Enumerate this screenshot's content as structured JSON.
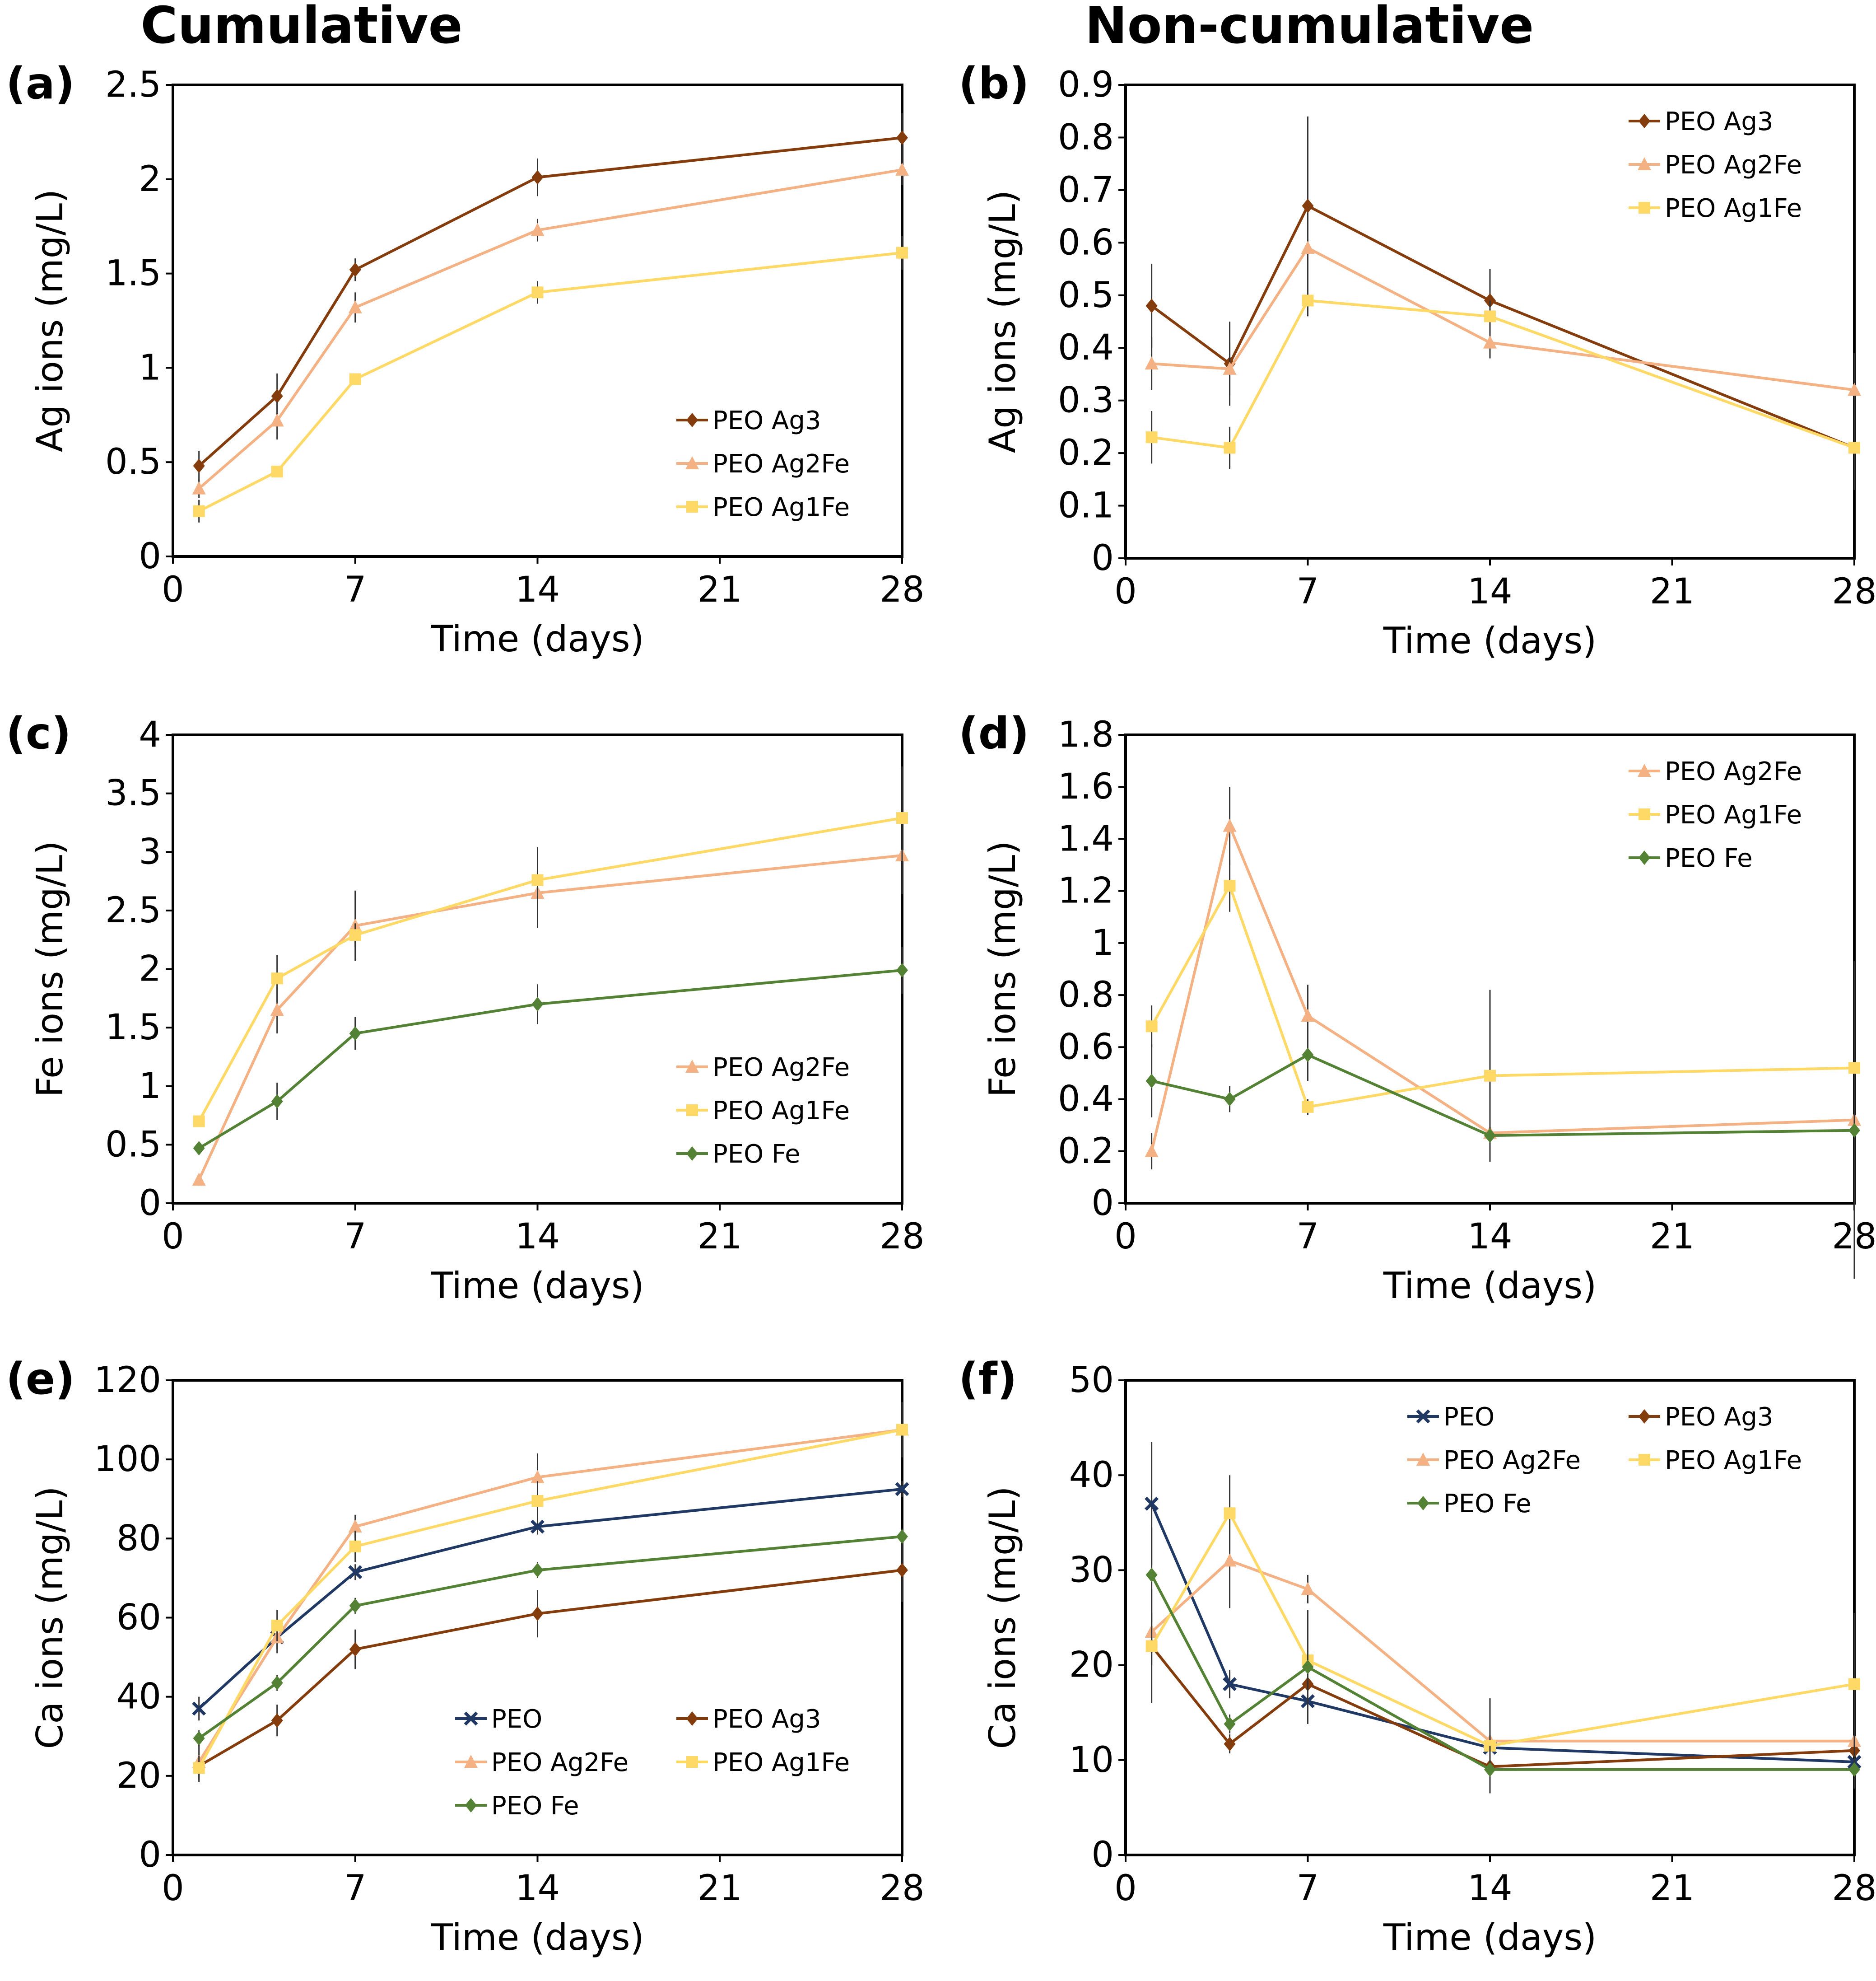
{
  "headers": {
    "cumulative": "Cumulative",
    "noncumulative": "Non-cumulative"
  },
  "series_styles": {
    "PEO": {
      "color": "#1f3864",
      "marker": "x"
    },
    "PEO Ag3": {
      "color": "#843c0c",
      "marker": "diamond"
    },
    "PEO Ag2Fe": {
      "color": "#f4b183",
      "marker": "triangle"
    },
    "PEO Ag1Fe": {
      "color": "#ffd966",
      "marker": "square"
    },
    "PEO Fe": {
      "color": "#548235",
      "marker": "diamond"
    }
  },
  "chart_data": [
    {
      "panel": "(a)",
      "type": "line",
      "xlabel": "Time (days)",
      "ylabel": "Ag ions (mg/L)",
      "xlim": [
        0,
        28
      ],
      "xticks": [
        0,
        7,
        14,
        21,
        28
      ],
      "ylim": [
        0,
        2.5
      ],
      "yticks": [
        0,
        0.5,
        1,
        1.5,
        2,
        2.5
      ],
      "x": [
        1,
        4,
        7,
        14,
        28
      ],
      "legend_position": "bottom-right",
      "legend_cols": 1,
      "series": [
        {
          "name": "PEO Ag3",
          "values": [
            0.48,
            0.85,
            1.52,
            2.01,
            2.22
          ],
          "errors": [
            0.08,
            0.12,
            0.06,
            0.1,
            0.13
          ]
        },
        {
          "name": "PEO Ag2Fe",
          "values": [
            0.36,
            0.72,
            1.32,
            1.73,
            2.05
          ],
          "errors": [
            0.05,
            0.1,
            0.08,
            0.06,
            0.08
          ]
        },
        {
          "name": "PEO Ag1Fe",
          "values": [
            0.24,
            0.45,
            0.94,
            1.4,
            1.61
          ],
          "errors": [
            0.06,
            0.03,
            0.03,
            0.06,
            0.09
          ]
        }
      ]
    },
    {
      "panel": "(b)",
      "type": "line",
      "xlabel": "Time (days)",
      "ylabel": "Ag ions (mg/L)",
      "xlim": [
        0,
        28
      ],
      "xticks": [
        0,
        7,
        14,
        21,
        28
      ],
      "ylim": [
        0,
        0.9
      ],
      "yticks": [
        0,
        0.1,
        0.2,
        0.3,
        0.4,
        0.5,
        0.6,
        0.7,
        0.8,
        0.9
      ],
      "x": [
        1,
        4,
        7,
        14,
        28
      ],
      "legend_position": "top-right",
      "legend_cols": 1,
      "series": [
        {
          "name": "PEO Ag3",
          "values": [
            0.48,
            0.37,
            0.67,
            0.49,
            0.21
          ],
          "errors": [
            0.08,
            0.08,
            0.17,
            0.06,
            0.08
          ]
        },
        {
          "name": "PEO Ag2Fe",
          "values": [
            0.37,
            0.36,
            0.59,
            0.41,
            0.32
          ],
          "errors": [
            0.05,
            0.05,
            0.06,
            0.03,
            0.07
          ]
        },
        {
          "name": "PEO Ag1Fe",
          "values": [
            0.23,
            0.21,
            0.49,
            0.46,
            0.21
          ],
          "errors": [
            0.05,
            0.04,
            0.03,
            0.03,
            0.02
          ]
        }
      ]
    },
    {
      "panel": "(c)",
      "type": "line",
      "xlabel": "Time (days)",
      "ylabel": "Fe ions (mg/L)",
      "xlim": [
        0,
        28
      ],
      "xticks": [
        0,
        7,
        14,
        21,
        28
      ],
      "ylim": [
        0,
        4
      ],
      "yticks": [
        0,
        0.5,
        1,
        1.5,
        2,
        2.5,
        3,
        3.5,
        4
      ],
      "x": [
        1,
        4,
        7,
        14,
        28
      ],
      "legend_position": "bottom-right",
      "legend_cols": 1,
      "series": [
        {
          "name": "PEO Ag2Fe",
          "values": [
            0.2,
            1.65,
            2.37,
            2.65,
            2.97
          ],
          "errors": [
            0.05,
            0.2,
            0.3,
            0.3,
            0.33
          ]
        },
        {
          "name": "PEO Ag1Fe",
          "values": [
            0.7,
            1.92,
            2.29,
            2.76,
            3.29
          ],
          "errors": [
            0.05,
            0.2,
            0.1,
            0.28,
            0.44
          ]
        },
        {
          "name": "PEO Fe",
          "values": [
            0.47,
            0.87,
            1.45,
            1.7,
            1.99
          ],
          "errors": [
            0.04,
            0.16,
            0.14,
            0.17,
            0.2
          ]
        }
      ]
    },
    {
      "panel": "(d)",
      "type": "line",
      "xlabel": "Time (days)",
      "ylabel": "Fe ions (mg/L)",
      "xlim": [
        0,
        28
      ],
      "xticks": [
        0,
        7,
        14,
        21,
        28
      ],
      "ylim": [
        0,
        1.8
      ],
      "yticks": [
        0,
        0.2,
        0.4,
        0.6,
        0.8,
        1,
        1.2,
        1.4,
        1.6,
        1.8
      ],
      "x": [
        1,
        4,
        7,
        14,
        28
      ],
      "legend_position": "top-right",
      "legend_cols": 1,
      "series": [
        {
          "name": "PEO Ag2Fe",
          "values": [
            0.2,
            1.45,
            0.72,
            0.27,
            0.32
          ],
          "errors": [
            0.07,
            0.15,
            0.12,
            0.11,
            0.61
          ]
        },
        {
          "name": "PEO Ag1Fe",
          "values": [
            0.68,
            1.22,
            0.37,
            0.49,
            0.52
          ],
          "errors": [
            0.08,
            0.1,
            0.03,
            0.33,
            0.41
          ]
        },
        {
          "name": "PEO Fe",
          "values": [
            0.47,
            0.4,
            0.57,
            0.26,
            0.28
          ],
          "errors": [
            0.14,
            0.05,
            0.1,
            0.1,
            0.16
          ]
        }
      ]
    },
    {
      "panel": "(e)",
      "type": "line",
      "xlabel": "Time (days)",
      "ylabel": "Ca ions (mg/L)",
      "xlim": [
        0,
        28
      ],
      "xticks": [
        0,
        7,
        14,
        21,
        28
      ],
      "ylim": [
        0,
        120
      ],
      "yticks": [
        0,
        20,
        40,
        60,
        80,
        100,
        120
      ],
      "x": [
        1,
        4,
        7,
        14,
        28
      ],
      "legend_position": "bottom-right",
      "legend_cols": 2,
      "series": [
        {
          "name": "PEO",
          "values": [
            37,
            55,
            71.5,
            83,
            92.5
          ],
          "errors": [
            3,
            3,
            2,
            2,
            2
          ]
        },
        {
          "name": "PEO Ag3",
          "values": [
            22.5,
            34,
            52,
            61,
            72
          ],
          "errors": [
            2,
            4,
            5,
            6,
            8
          ]
        },
        {
          "name": "PEO Ag2Fe",
          "values": [
            23.5,
            55,
            83,
            95.5,
            107.5
          ],
          "errors": [
            5,
            4,
            3,
            6,
            7
          ]
        },
        {
          "name": "PEO Ag1Fe",
          "values": [
            22,
            58,
            78,
            89.5,
            107.5
          ],
          "errors": [
            3,
            4,
            4,
            5,
            4
          ]
        },
        {
          "name": "PEO Fe",
          "values": [
            29.5,
            43.5,
            63,
            72,
            80.5
          ],
          "errors": [
            2,
            2,
            2,
            2,
            2
          ]
        }
      ]
    },
    {
      "panel": "(f)",
      "type": "line",
      "xlabel": "Time (days)",
      "ylabel": "Ca ions (mg/L)",
      "xlim": [
        0,
        28
      ],
      "xticks": [
        0,
        7,
        14,
        21,
        28
      ],
      "ylim": [
        0,
        50
      ],
      "yticks": [
        0,
        10,
        20,
        30,
        40,
        50
      ],
      "x": [
        1,
        4,
        7,
        14,
        28
      ],
      "legend_position": "top-right",
      "legend_cols": 2,
      "series": [
        {
          "name": "PEO",
          "values": [
            37,
            18,
            16.2,
            11.3,
            9.8
          ],
          "errors": [
            6.5,
            1.5,
            1,
            1,
            1
          ]
        },
        {
          "name": "PEO Ag3",
          "values": [
            22,
            11.7,
            18,
            9.3,
            11
          ],
          "errors": [
            2,
            1,
            2,
            1,
            1
          ]
        },
        {
          "name": "PEO Ag2Fe",
          "values": [
            23.5,
            31,
            28,
            12,
            12
          ],
          "errors": [
            2,
            5,
            1.5,
            1,
            1
          ]
        },
        {
          "name": "PEO Ag1Fe",
          "values": [
            22,
            36,
            20.5,
            11.5,
            18
          ],
          "errors": [
            6,
            4,
            2,
            5,
            7.5
          ]
        },
        {
          "name": "PEO Fe",
          "values": [
            29.5,
            13.8,
            19.8,
            9,
            9
          ],
          "errors": [
            5,
            1,
            6,
            2.5,
            2
          ]
        }
      ]
    }
  ]
}
